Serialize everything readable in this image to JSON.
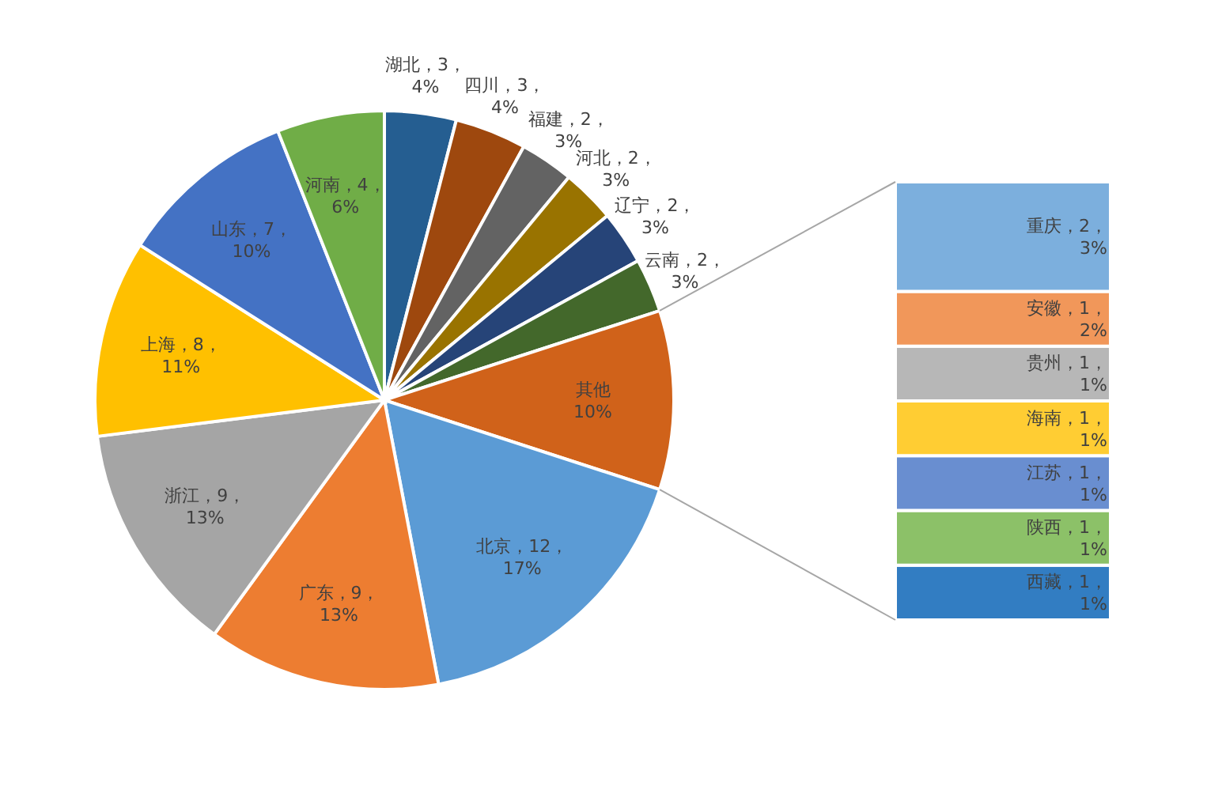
{
  "chart_data": [
    {
      "type": "pie",
      "categories": [
        "湖北",
        "四川",
        "福建",
        "河北",
        "辽宁",
        "云南",
        "其他",
        "北京",
        "广东",
        "浙江",
        "上海",
        "山东",
        "河南"
      ],
      "values": [
        4,
        4,
        3,
        3,
        3,
        3,
        10,
        17,
        13,
        13,
        11,
        10,
        6
      ],
      "colors": [
        "#255e91",
        "#9e480e",
        "#636363",
        "#997300",
        "#264478",
        "#43682b",
        "#d0621a",
        "#5b9bd5",
        "#ed7d31",
        "#a5a5a5",
        "#ffc000",
        "#4472c4",
        "#70ad47"
      ],
      "value_labels": [
        "，3，\n4%",
        "，3，\n4%",
        "，2，\n3%",
        "，2，\n3%",
        "，2，\n3%",
        "，2，\n3%",
        "\n10%",
        "，12，\n17%",
        "，9，\n13%",
        "，9，\n13%",
        "，8，\n11%",
        "，7，\n10%",
        "，4，\n6%"
      ]
    },
    {
      "type": "bar",
      "stacked": true,
      "categories": [
        null
      ],
      "series": [
        {
          "name": "西藏",
          "color": "#327dc2",
          "values": [
            1
          ],
          "value_labels": [
            "，1，\n1%"
          ]
        },
        {
          "name": "陕西",
          "color": "#8cc168",
          "values": [
            1
          ],
          "value_labels": [
            "，1，\n1%"
          ]
        },
        {
          "name": "江苏",
          "color": "#698ed0",
          "values": [
            1
          ],
          "value_labels": [
            "，1，\n1%"
          ]
        },
        {
          "name": "海南",
          "color": "#ffcd33",
          "values": [
            1
          ],
          "value_labels": [
            "，1，\n1%"
          ]
        },
        {
          "name": "贵州",
          "color": "#b7b7b7",
          "values": [
            1
          ],
          "value_labels": [
            "，1，\n1%"
          ]
        },
        {
          "name": "安徽",
          "color": "#f1975a",
          "values": [
            1
          ],
          "value_labels": [
            "，1，\n2%"
          ]
        },
        {
          "name": "重庆",
          "color": "#7cafdd",
          "values": [
            2
          ],
          "value_labels": [
            "，2，\n3%"
          ]
        }
      ]
    }
  ]
}
